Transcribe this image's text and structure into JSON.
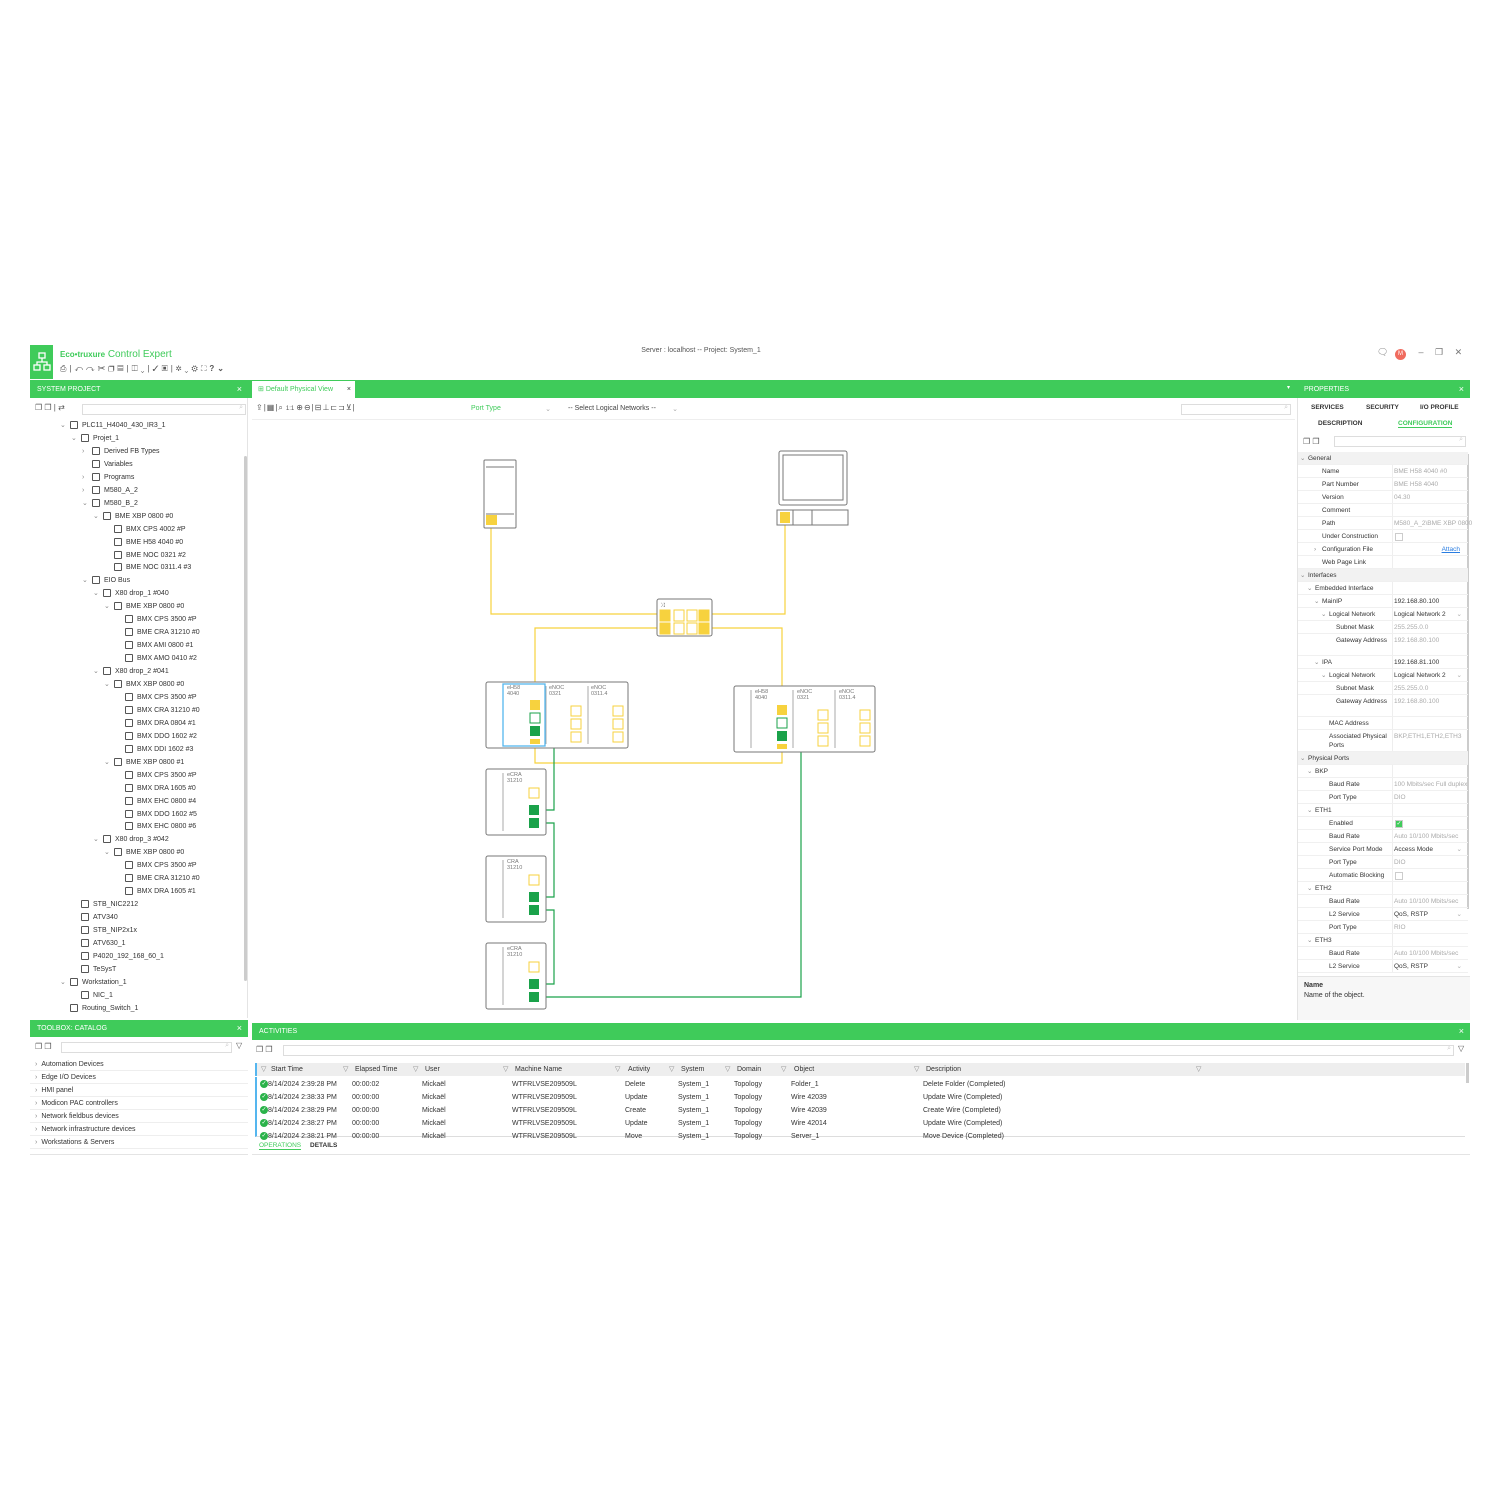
{
  "app": {
    "brand": "Eco•truxure",
    "name": "Control Expert",
    "server_info": "Server : localhost -- Project: System_1",
    "user_initial": "M",
    "accent": "#3fcb5a"
  },
  "window_controls": [
    "comment-icon",
    "minimize-icon",
    "restore-icon",
    "close-icon"
  ],
  "toolbar_icons": [
    "print-icon",
    "undo-icon",
    "redo-icon",
    "cut-icon",
    "copy-icon",
    "paste-icon",
    "layout-icon",
    "validate-icon",
    "build-icon",
    "tools-icon",
    "settings-icon",
    "fit-icon",
    "help-icon"
  ],
  "system_project": {
    "title": "SYSTEM PROJECT",
    "close": "×",
    "tree": [
      {
        "t": "PLC11_H4040_430_IR3_1",
        "l": 0,
        "c": "v"
      },
      {
        "t": "Projet_1",
        "l": 1,
        "c": "v"
      },
      {
        "t": "Derived FB Types",
        "l": 2,
        "c": ">"
      },
      {
        "t": "Variables",
        "l": 2,
        "c": ""
      },
      {
        "t": "Programs",
        "l": 2,
        "c": ">"
      },
      {
        "t": "M580_A_2",
        "l": 2,
        "c": ">"
      },
      {
        "t": "M580_B_2",
        "l": 2,
        "c": "v"
      },
      {
        "t": "BME XBP 0800 #0",
        "l": 3,
        "c": "v"
      },
      {
        "t": "BMX CPS 4002 #P",
        "l": 4,
        "c": ""
      },
      {
        "t": "BME H58 4040 #0",
        "l": 4,
        "c": ""
      },
      {
        "t": "BME NOC 0321 #2",
        "l": 4,
        "c": ""
      },
      {
        "t": "BME NOC 0311.4 #3",
        "l": 4,
        "c": ""
      },
      {
        "t": "EIO Bus",
        "l": 2,
        "c": "v"
      },
      {
        "t": "X80 drop_1 #040",
        "l": 3,
        "c": "v"
      },
      {
        "t": "BME XBP 0800 #0",
        "l": 4,
        "c": "v"
      },
      {
        "t": "BMX CPS 3500 #P",
        "l": 5,
        "c": ""
      },
      {
        "t": "BME CRA 31210 #0",
        "l": 5,
        "c": ""
      },
      {
        "t": "BMX AMI 0800 #1",
        "l": 5,
        "c": ""
      },
      {
        "t": "BMX AMO 0410 #2",
        "l": 5,
        "c": ""
      },
      {
        "t": "X80 drop_2 #041",
        "l": 3,
        "c": "v"
      },
      {
        "t": "BMX XBP 0800 #0",
        "l": 4,
        "c": "v"
      },
      {
        "t": "BMX CPS 3500 #P",
        "l": 5,
        "c": ""
      },
      {
        "t": "BMX CRA 31210 #0",
        "l": 5,
        "c": ""
      },
      {
        "t": "BMX DRA 0804 #1",
        "l": 5,
        "c": ""
      },
      {
        "t": "BMX DDO 1602 #2",
        "l": 5,
        "c": ""
      },
      {
        "t": "BMX DDI 1602 #3",
        "l": 5,
        "c": ""
      },
      {
        "t": "BME XBP 0800 #1",
        "l": 4,
        "c": "v"
      },
      {
        "t": "BMX CPS 3500 #P",
        "l": 5,
        "c": ""
      },
      {
        "t": "BMX DRA 1605 #0",
        "l": 5,
        "c": ""
      },
      {
        "t": "BMX EHC 0800 #4",
        "l": 5,
        "c": ""
      },
      {
        "t": "BMX DDO 1602 #5",
        "l": 5,
        "c": ""
      },
      {
        "t": "BMX EHC 0800 #6",
        "l": 5,
        "c": ""
      },
      {
        "t": "X80 drop_3 #042",
        "l": 3,
        "c": "v"
      },
      {
        "t": "BME XBP 0800 #0",
        "l": 4,
        "c": "v"
      },
      {
        "t": "BMX CPS 3500 #P",
        "l": 5,
        "c": ""
      },
      {
        "t": "BME CRA 31210 #0",
        "l": 5,
        "c": ""
      },
      {
        "t": "BMX DRA 1605 #1",
        "l": 5,
        "c": ""
      },
      {
        "t": "STB_NIC2212",
        "l": 1,
        "c": ""
      },
      {
        "t": "ATV340",
        "l": 1,
        "c": ""
      },
      {
        "t": "STB_NIP2x1x",
        "l": 1,
        "c": ""
      },
      {
        "t": "ATV630_1",
        "l": 1,
        "c": ""
      },
      {
        "t": "P4020_192_168_60_1",
        "l": 1,
        "c": ""
      },
      {
        "t": "TeSysT",
        "l": 1,
        "c": ""
      },
      {
        "t": "Workstation_1",
        "l": 0,
        "c": "v"
      },
      {
        "t": "NIC_1",
        "l": 1,
        "c": ""
      },
      {
        "t": "Routing_Switch_1",
        "l": 0,
        "c": ""
      }
    ]
  },
  "toolbox": {
    "title": "TOOLBOX: CATALOG",
    "close": "×",
    "items": [
      "Automation Devices",
      "Edge I/O Devices",
      "HMI panel",
      "Modicon PAC controllers",
      "Network fieldbus devices",
      "Network infrastructure devices",
      "Workstations & Servers"
    ]
  },
  "editor": {
    "tab": "Default Physical View",
    "close": "×",
    "zoom_reset": "1:1",
    "port_type": "Port Type",
    "logical_networks": "-- Select Logical Networks --",
    "diagram": {
      "rack1": [
        "eH58\n4040",
        "eNOC\n0321",
        "eNOC\n0311.4"
      ],
      "rack2": [
        "eH58\n4040",
        "eNOC\n0321",
        "eNOC\n0311.4"
      ],
      "drops": [
        "eCRA\n31210",
        "CRA\n31210",
        "eCRA\n31210"
      ],
      "wire_colors": {
        "dio": "#f7d23e",
        "rio": "#1aa24a",
        "selected": "#55b6ef"
      }
    }
  },
  "properties": {
    "title": "PROPERTIES",
    "close": "×",
    "tabs_row1": [
      "SERVICES",
      "SECURITY",
      "I/O PROFILE"
    ],
    "tabs_row2": [
      "DESCRIPTION",
      "CONFIGURATION"
    ],
    "active_tab": "CONFIGURATION",
    "rows": [
      {
        "k": "General",
        "s": 1,
        "i": 0
      },
      {
        "k": "Name",
        "v": "BME H58 4040 #0",
        "i": 2,
        "g": 1
      },
      {
        "k": "Part Number",
        "v": "BME H58 4040",
        "i": 2,
        "g": 1
      },
      {
        "k": "Version",
        "v": "04.30",
        "i": 2,
        "g": 1
      },
      {
        "k": "Comment",
        "v": "",
        "i": 2
      },
      {
        "k": "Path",
        "v": "M580_A_2\\BME XBP 0800",
        "i": 2,
        "g": 1
      },
      {
        "k": "Under Construction",
        "v": "",
        "i": 2,
        "cb": 0
      },
      {
        "k": "Configuration File",
        "v": "Attach",
        "i": 2,
        "link": 1,
        "c": ">"
      },
      {
        "k": "Web Page Link",
        "v": "",
        "i": 2
      },
      {
        "k": "Interfaces",
        "s": 1,
        "i": 0
      },
      {
        "k": "Embedded Interface",
        "i": 1,
        "c": "v"
      },
      {
        "k": "MainIP",
        "v": "192.168.80.100",
        "i": 2,
        "c": "v"
      },
      {
        "k": "Logical Network",
        "v": "Logical Network 2",
        "i": 3,
        "c": "v",
        "dd": 1
      },
      {
        "k": "Subnet Mask",
        "v": "255.255.0.0",
        "i": 4,
        "g": 1
      },
      {
        "k": "Gateway Address",
        "v": "192.168.80.100",
        "i": 4,
        "g": 1,
        "tall": 1
      },
      {
        "k": "IPA",
        "v": "192.168.81.100",
        "i": 2,
        "c": "v"
      },
      {
        "k": "Logical Network",
        "v": "Logical Network 2",
        "i": 3,
        "c": "v",
        "dd": 1
      },
      {
        "k": "Subnet Mask",
        "v": "255.255.0.0",
        "i": 4,
        "g": 1
      },
      {
        "k": "Gateway Address",
        "v": "192.168.80.100",
        "i": 4,
        "g": 1,
        "tall": 1
      },
      {
        "k": "MAC Address",
        "v": "",
        "i": 3
      },
      {
        "k": "Associated Physical Ports",
        "v": "BKP,ETH1,ETH2,ETH3",
        "i": 3,
        "g": 1,
        "tall": 1
      },
      {
        "k": "Physical Ports",
        "s": 1,
        "i": 0
      },
      {
        "k": "BKP",
        "i": 1,
        "c": "v"
      },
      {
        "k": "Baud Rate",
        "v": "100 Mbits/sec Full duplex",
        "i": 3,
        "g": 1
      },
      {
        "k": "Port Type",
        "v": "DIO",
        "i": 3,
        "g": 1
      },
      {
        "k": "ETH1",
        "i": 1,
        "c": "v"
      },
      {
        "k": "Enabled",
        "v": "",
        "i": 3,
        "cb": 1
      },
      {
        "k": "Baud Rate",
        "v": "Auto 10/100 Mbits/sec",
        "i": 3,
        "g": 1
      },
      {
        "k": "Service Port Mode",
        "v": "Access Mode",
        "i": 3,
        "dd": 1
      },
      {
        "k": "Port Type",
        "v": "DIO",
        "i": 3,
        "g": 1
      },
      {
        "k": "Automatic Blocking",
        "v": "",
        "i": 3,
        "cb": 0
      },
      {
        "k": "ETH2",
        "i": 1,
        "c": "v"
      },
      {
        "k": "Baud Rate",
        "v": "Auto 10/100 Mbits/sec",
        "i": 3,
        "g": 1
      },
      {
        "k": "L2 Service",
        "v": "QoS, RSTP",
        "i": 3,
        "dd": 1
      },
      {
        "k": "Port Type",
        "v": "RIO",
        "i": 3,
        "g": 1
      },
      {
        "k": "ETH3",
        "i": 1,
        "c": "v"
      },
      {
        "k": "Baud Rate",
        "v": "Auto 10/100 Mbits/sec",
        "i": 3,
        "g": 1
      },
      {
        "k": "L2 Service",
        "v": "QoS, RSTP",
        "i": 3,
        "dd": 1
      }
    ],
    "help_title": "Name",
    "help_text": "Name of the object."
  },
  "activities": {
    "title": "ACTIVITIES",
    "close": "×",
    "columns": [
      "Start Time",
      "Elapsed Time",
      "User",
      "Machine Name",
      "Activity",
      "System",
      "Domain",
      "Object",
      "Description"
    ],
    "rows": [
      {
        "status": "completed",
        "cells": [
          "8/14/2024 2:39:28 PM",
          "00:00:02",
          "Mickaël",
          "WTFRLVSE209509L",
          "Delete",
          "System_1",
          "Topology",
          "Folder_1",
          "Delete Folder (Completed)"
        ]
      },
      {
        "status": "completed",
        "cells": [
          "8/14/2024 2:38:33 PM",
          "00:00:00",
          "Mickaël",
          "WTFRLVSE209509L",
          "Update",
          "System_1",
          "Topology",
          "Wire 42039",
          "Update Wire (Completed)"
        ]
      },
      {
        "status": "completed",
        "cells": [
          "8/14/2024 2:38:29 PM",
          "00:00:00",
          "Mickaël",
          "WTFRLVSE209509L",
          "Create",
          "System_1",
          "Topology",
          "Wire 42039",
          "Create Wire (Completed)"
        ]
      },
      {
        "status": "completed",
        "cells": [
          "8/14/2024 2:38:27 PM",
          "00:00:00",
          "Mickaël",
          "WTFRLVSE209509L",
          "Update",
          "System_1",
          "Topology",
          "Wire 42014",
          "Update Wire (Completed)"
        ]
      },
      {
        "status": "completed",
        "cells": [
          "8/14/2024 2:38:21 PM",
          "00:00:00",
          "Mickaël",
          "WTFRLVSE209509L",
          "Move",
          "System_1",
          "Topology",
          "Server_1",
          "Move Device (Completed)"
        ]
      }
    ],
    "tabs": [
      "OPERATIONS",
      "DETAILS"
    ],
    "active_tab": "OPERATIONS"
  }
}
